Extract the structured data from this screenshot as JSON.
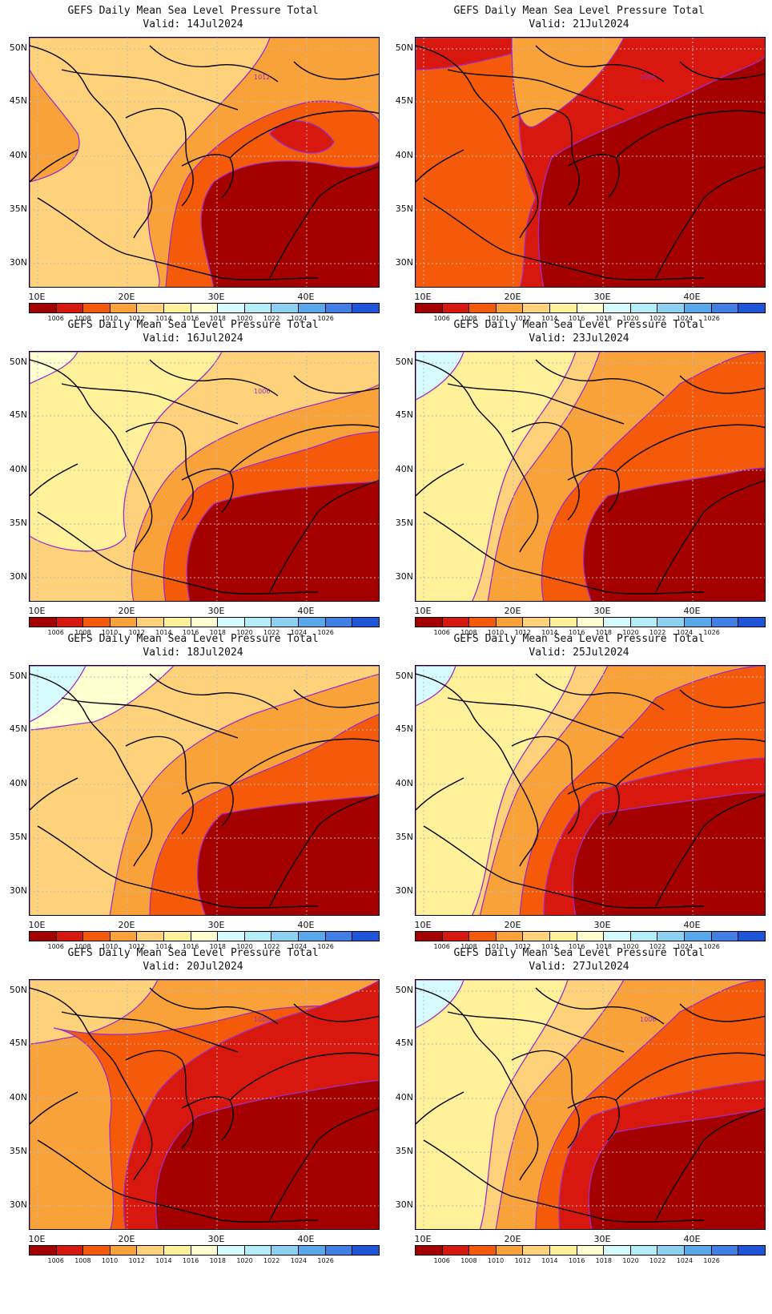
{
  "panels": [
    {
      "title": "GEFS Daily Mean Sea Level Pressure Total",
      "valid": "Valid: 14Jul2024",
      "contour_label": "1012",
      "pattern": "p14"
    },
    {
      "title": "GEFS Daily Mean Sea Level Pressure Total",
      "valid": "Valid: 21Jul2024",
      "contour_label": "1006",
      "pattern": "p21"
    },
    {
      "title": "GEFS Daily Mean Sea Level Pressure Total",
      "valid": "Valid: 16Jul2024",
      "contour_label": "1006",
      "pattern": "p16"
    },
    {
      "title": "GEFS Daily Mean Sea Level Pressure Total",
      "valid": "Valid: 23Jul2024",
      "contour_label": "",
      "pattern": "p23"
    },
    {
      "title": "GEFS Daily Mean Sea Level Pressure Total",
      "valid": "Valid: 18Jul2024",
      "contour_label": "",
      "pattern": "p18"
    },
    {
      "title": "GEFS Daily Mean Sea Level Pressure Total",
      "valid": "Valid: 25Jul2024",
      "contour_label": "",
      "pattern": "p25"
    },
    {
      "title": "GEFS Daily Mean Sea Level Pressure Total",
      "valid": "Valid: 20Jul2024",
      "contour_label": "1008",
      "pattern": "p20"
    },
    {
      "title": "GEFS Daily Mean Sea Level Pressure Total",
      "valid": "Valid: 27Jul2024",
      "contour_label": "1006",
      "pattern": "p27"
    }
  ],
  "lat_labels": [
    "50N",
    "45N",
    "40N",
    "35N",
    "30N"
  ],
  "lon_labels": [
    "10E",
    "20E",
    "30E",
    "40E"
  ],
  "colorbar": {
    "labels": [
      "1006",
      "1008",
      "1010",
      "1012",
      "1014",
      "1016",
      "1018",
      "1020",
      "1022",
      "1024",
      "1026"
    ],
    "colors": [
      "#a50000",
      "#d8180e",
      "#f55a0a",
      "#f9a23a",
      "#fdd27a",
      "#fff09a",
      "#ffffd0",
      "#d6fbff",
      "#b4ecf8",
      "#8cd0f2",
      "#5aa8ec",
      "#3f7fe6",
      "#1f55d8"
    ]
  }
}
